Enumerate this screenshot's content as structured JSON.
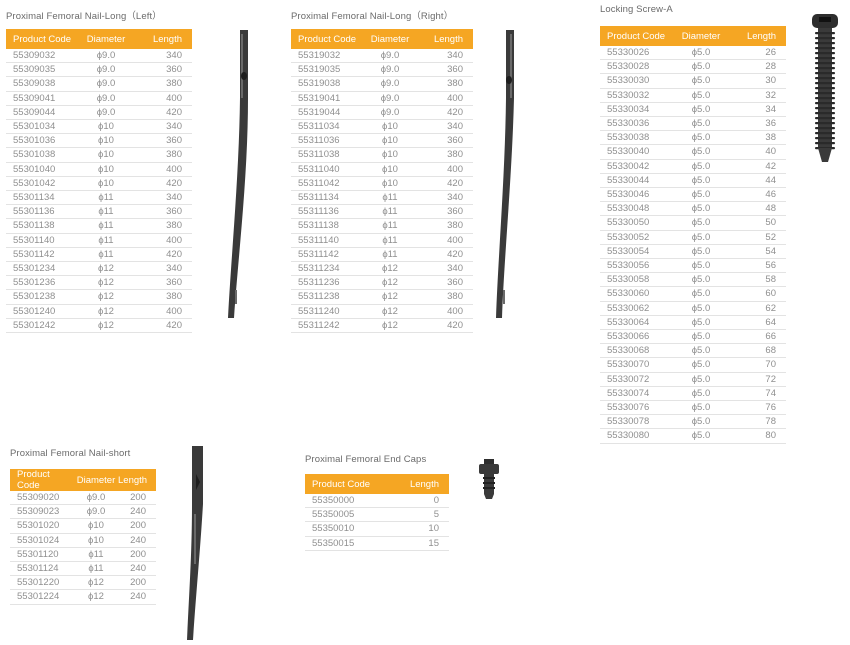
{
  "headers": {
    "product_code": "Product Code",
    "diameter": "Diameter",
    "length": "Length"
  },
  "nail_long_left": {
    "title": "Proximal Femoral Nail-Long（Left）",
    "rows": [
      [
        "55309032",
        "ϕ9.0",
        "340"
      ],
      [
        "55309035",
        "ϕ9.0",
        "360"
      ],
      [
        "55309038",
        "ϕ9.0",
        "380"
      ],
      [
        "55309041",
        "ϕ9.0",
        "400"
      ],
      [
        "55309044",
        "ϕ9.0",
        "420"
      ],
      [
        "55301034",
        "ϕ10",
        "340"
      ],
      [
        "55301036",
        "ϕ10",
        "360"
      ],
      [
        "55301038",
        "ϕ10",
        "380"
      ],
      [
        "55301040",
        "ϕ10",
        "400"
      ],
      [
        "55301042",
        "ϕ10",
        "420"
      ],
      [
        "55301134",
        "ϕ11",
        "340"
      ],
      [
        "55301136",
        "ϕ11",
        "360"
      ],
      [
        "55301138",
        "ϕ11",
        "380"
      ],
      [
        "55301140",
        "ϕ11",
        "400"
      ],
      [
        "55301142",
        "ϕ11",
        "420"
      ],
      [
        "55301234",
        "ϕ12",
        "340"
      ],
      [
        "55301236",
        "ϕ12",
        "360"
      ],
      [
        "55301238",
        "ϕ12",
        "380"
      ],
      [
        "55301240",
        "ϕ12",
        "400"
      ],
      [
        "55301242",
        "ϕ12",
        "420"
      ]
    ]
  },
  "nail_long_right": {
    "title": "Proximal Femoral Nail-Long（Right）",
    "rows": [
      [
        "55319032",
        "ϕ9.0",
        "340"
      ],
      [
        "55319035",
        "ϕ9.0",
        "360"
      ],
      [
        "55319038",
        "ϕ9.0",
        "380"
      ],
      [
        "55319041",
        "ϕ9.0",
        "400"
      ],
      [
        "55319044",
        "ϕ9.0",
        "420"
      ],
      [
        "55311034",
        "ϕ10",
        "340"
      ],
      [
        "55311036",
        "ϕ10",
        "360"
      ],
      [
        "55311038",
        "ϕ10",
        "380"
      ],
      [
        "55311040",
        "ϕ10",
        "400"
      ],
      [
        "55311042",
        "ϕ10",
        "420"
      ],
      [
        "55311134",
        "ϕ11",
        "340"
      ],
      [
        "55311136",
        "ϕ11",
        "360"
      ],
      [
        "55311138",
        "ϕ11",
        "380"
      ],
      [
        "55311140",
        "ϕ11",
        "400"
      ],
      [
        "55311142",
        "ϕ11",
        "420"
      ],
      [
        "55311234",
        "ϕ12",
        "340"
      ],
      [
        "55311236",
        "ϕ12",
        "360"
      ],
      [
        "55311238",
        "ϕ12",
        "380"
      ],
      [
        "55311240",
        "ϕ12",
        "400"
      ],
      [
        "55311242",
        "ϕ12",
        "420"
      ]
    ]
  },
  "locking_screw": {
    "title": "Locking Screw-A",
    "rows": [
      [
        "55330026",
        "ϕ5.0",
        "26"
      ],
      [
        "55330028",
        "ϕ5.0",
        "28"
      ],
      [
        "55330030",
        "ϕ5.0",
        "30"
      ],
      [
        "55330032",
        "ϕ5.0",
        "32"
      ],
      [
        "55330034",
        "ϕ5.0",
        "34"
      ],
      [
        "55330036",
        "ϕ5.0",
        "36"
      ],
      [
        "55330038",
        "ϕ5.0",
        "38"
      ],
      [
        "55330040",
        "ϕ5.0",
        "40"
      ],
      [
        "55330042",
        "ϕ5.0",
        "42"
      ],
      [
        "55330044",
        "ϕ5.0",
        "44"
      ],
      [
        "55330046",
        "ϕ5.0",
        "46"
      ],
      [
        "55330048",
        "ϕ5.0",
        "48"
      ],
      [
        "55330050",
        "ϕ5.0",
        "50"
      ],
      [
        "55330052",
        "ϕ5.0",
        "52"
      ],
      [
        "55330054",
        "ϕ5.0",
        "54"
      ],
      [
        "55330056",
        "ϕ5.0",
        "56"
      ],
      [
        "55330058",
        "ϕ5.0",
        "58"
      ],
      [
        "55330060",
        "ϕ5.0",
        "60"
      ],
      [
        "55330062",
        "ϕ5.0",
        "62"
      ],
      [
        "55330064",
        "ϕ5.0",
        "64"
      ],
      [
        "55330066",
        "ϕ5.0",
        "66"
      ],
      [
        "55330068",
        "ϕ5.0",
        "68"
      ],
      [
        "55330070",
        "ϕ5.0",
        "70"
      ],
      [
        "55330072",
        "ϕ5.0",
        "72"
      ],
      [
        "55330074",
        "ϕ5.0",
        "74"
      ],
      [
        "55330076",
        "ϕ5.0",
        "76"
      ],
      [
        "55330078",
        "ϕ5.0",
        "78"
      ],
      [
        "55330080",
        "ϕ5.0",
        "80"
      ]
    ]
  },
  "nail_short": {
    "title": "Proximal Femoral Nail-short",
    "rows": [
      [
        "55309020",
        "ϕ9.0",
        "200"
      ],
      [
        "55309023",
        "ϕ9.0",
        "240"
      ],
      [
        "55301020",
        "ϕ10",
        "200"
      ],
      [
        "55301024",
        "ϕ10",
        "240"
      ],
      [
        "55301120",
        "ϕ11",
        "200"
      ],
      [
        "55301124",
        "ϕ11",
        "240"
      ],
      [
        "55301220",
        "ϕ12",
        "200"
      ],
      [
        "55301224",
        "ϕ12",
        "240"
      ]
    ]
  },
  "end_caps": {
    "title": "Proximal Femoral End Caps",
    "rows": [
      [
        "55350000",
        "0"
      ],
      [
        "55350005",
        "5"
      ],
      [
        "55350010",
        "10"
      ],
      [
        "55350015",
        "15"
      ]
    ]
  },
  "colors": {
    "header_bg": "#f5a623",
    "header_text": "#ffffff",
    "row_text": "#8f8f8f",
    "row_divider": "#e3e3e3",
    "implant_metal": "#3a3a3a"
  },
  "images": {
    "nail_long_left": "femoral-nail-long-icon",
    "nail_long_right": "femoral-nail-long-icon",
    "locking_screw": "locking-screw-icon",
    "nail_short": "femoral-nail-short-icon",
    "end_cap": "end-cap-icon"
  }
}
